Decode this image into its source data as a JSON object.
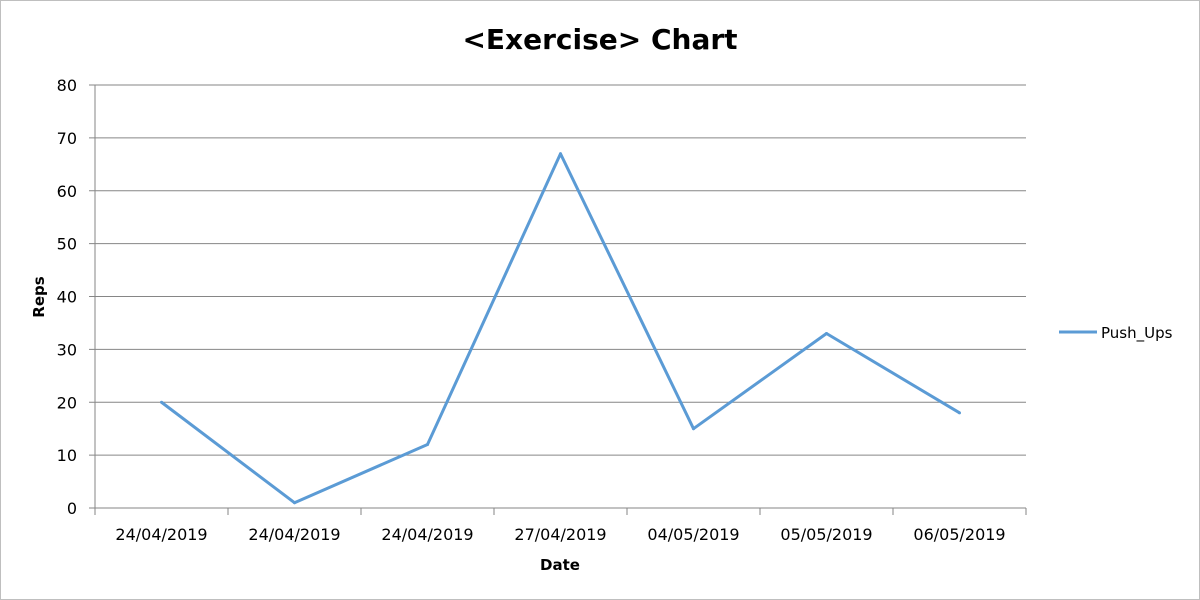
{
  "chart_data": {
    "type": "line",
    "title": "<Exercise> Chart",
    "xlabel": "Date",
    "ylabel": "Reps",
    "ylim": [
      0,
      80
    ],
    "yticks": [
      0,
      10,
      20,
      30,
      40,
      50,
      60,
      70,
      80
    ],
    "grid": true,
    "legend": "right",
    "categories": [
      "24/04/2019",
      "24/04/2019",
      "24/04/2019",
      "27/04/2019",
      "04/05/2019",
      "05/05/2019",
      "06/05/2019"
    ],
    "series": [
      {
        "name": "Push_Ups",
        "color": "#5b9bd5",
        "values": [
          20,
          1,
          12,
          67,
          15,
          33,
          18
        ]
      }
    ]
  }
}
